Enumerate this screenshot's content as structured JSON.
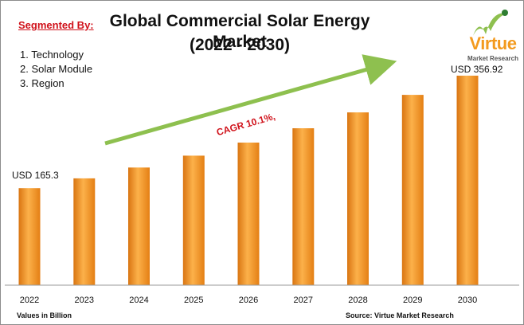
{
  "title_line1": "Global Commercial Solar Energy Market",
  "title_line2": "(2022 - 2030)",
  "segmented": {
    "heading": "Segmented By:",
    "items": [
      "1. Technology",
      "2. Solar Module",
      "3. Region"
    ]
  },
  "annotations": {
    "cagr": "CAGR 10.1%,",
    "first_value": "USD 165.3",
    "last_value": "USD 356.92"
  },
  "footer": {
    "values_note": "Values in Billion",
    "source": "Source: Virtue Market Research"
  },
  "logo": {
    "word": "Virtue",
    "sub": "Market Research"
  },
  "colors": {
    "bar_top": "#fcc25c",
    "bar_mid": "#f39426",
    "bar_dark": "#c9650c",
    "arrow": "#8ec04f",
    "cagr_text": "#d0121b"
  },
  "chart_data": {
    "type": "bar",
    "categories": [
      "2022",
      "2023",
      "2024",
      "2025",
      "2026",
      "2027",
      "2028",
      "2029",
      "2030"
    ],
    "values": [
      165.3,
      182.0,
      200.4,
      220.6,
      242.9,
      267.4,
      294.4,
      324.2,
      356.92
    ],
    "title": "Global Commercial Solar Energy Market (2022 - 2030)",
    "xlabel": "",
    "ylabel": "",
    "ylim": [
      0,
      400
    ],
    "grid": false,
    "legend": "none"
  }
}
